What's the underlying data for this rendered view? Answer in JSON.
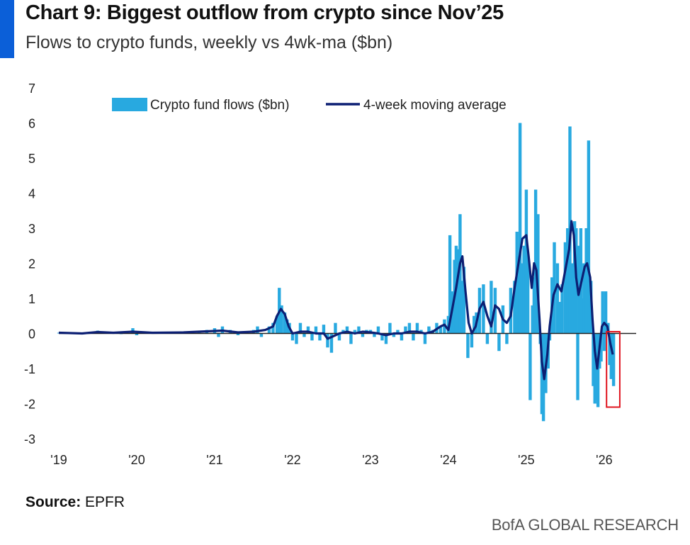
{
  "header": {
    "title": "Chart 9: Biggest outflow from crypto since Nov’25",
    "subtitle": "Flows to crypto funds, weekly vs 4wk-ma ($bn)"
  },
  "footer": {
    "source_label": "Source:",
    "source_value": " EPFR",
    "brand": "BofA GLOBAL RESEARCH"
  },
  "colors": {
    "flows": "#28a9e0",
    "ma": "#0c1f73",
    "highlight": "#e0141e",
    "accent": "#0b5fd8"
  },
  "chart_data": {
    "type": "bar",
    "ylim": [
      -3,
      7
    ],
    "yticks": [
      "7",
      "6",
      "5",
      "4",
      "3",
      "2",
      "1",
      "0",
      "-1",
      "-2",
      "-3"
    ],
    "xticks": [
      "'19",
      "'20",
      "'21",
      "'22",
      "'23",
      "'24",
      "'25",
      "'26"
    ],
    "legend": {
      "placement": "top",
      "flows_label": "Crypto fund flows ($bn)",
      "ma_label": "4-week moving average"
    },
    "highlight_range": {
      "x": [
        2026.03,
        2026.2
      ],
      "y": [
        -2.1,
        0.05
      ]
    },
    "series": [
      {
        "name": "Crypto fund flows ($bn)",
        "type": "bar",
        "points": [
          [
            2019.0,
            0.02
          ],
          [
            2019.3,
            -0.03
          ],
          [
            2019.5,
            0.08
          ],
          [
            2019.7,
            0.03
          ],
          [
            2019.8,
            -0.02
          ],
          [
            2019.95,
            0.15
          ],
          [
            2020.0,
            -0.05
          ],
          [
            2020.2,
            0.03
          ],
          [
            2020.4,
            0.05
          ],
          [
            2020.6,
            0.02
          ],
          [
            2020.8,
            0.06
          ],
          [
            2020.9,
            0.1
          ],
          [
            2021.0,
            0.15
          ],
          [
            2021.05,
            -0.1
          ],
          [
            2021.1,
            0.2
          ],
          [
            2021.2,
            0.1
          ],
          [
            2021.3,
            -0.05
          ],
          [
            2021.4,
            0.05
          ],
          [
            2021.5,
            0.1
          ],
          [
            2021.55,
            0.2
          ],
          [
            2021.6,
            -0.1
          ],
          [
            2021.7,
            0.2
          ],
          [
            2021.75,
            0.3
          ],
          [
            2021.8,
            0.5
          ],
          [
            2021.83,
            1.3
          ],
          [
            2021.86,
            0.8
          ],
          [
            2021.9,
            0.6
          ],
          [
            2021.93,
            0.4
          ],
          [
            2021.96,
            0.3
          ],
          [
            2022.0,
            -0.2
          ],
          [
            2022.05,
            -0.3
          ],
          [
            2022.1,
            0.3
          ],
          [
            2022.15,
            -0.1
          ],
          [
            2022.2,
            0.2
          ],
          [
            2022.25,
            -0.2
          ],
          [
            2022.3,
            0.2
          ],
          [
            2022.35,
            -0.2
          ],
          [
            2022.4,
            0.25
          ],
          [
            2022.45,
            -0.4
          ],
          [
            2022.5,
            -0.55
          ],
          [
            2022.55,
            0.3
          ],
          [
            2022.6,
            -0.2
          ],
          [
            2022.65,
            0.1
          ],
          [
            2022.7,
            0.2
          ],
          [
            2022.75,
            -0.3
          ],
          [
            2022.8,
            0.1
          ],
          [
            2022.85,
            0.2
          ],
          [
            2022.9,
            -0.1
          ],
          [
            2022.95,
            0.1
          ],
          [
            2023.0,
            0.1
          ],
          [
            2023.05,
            -0.1
          ],
          [
            2023.1,
            0.2
          ],
          [
            2023.15,
            -0.2
          ],
          [
            2023.2,
            -0.3
          ],
          [
            2023.25,
            0.3
          ],
          [
            2023.3,
            -0.1
          ],
          [
            2023.35,
            0.1
          ],
          [
            2023.4,
            -0.2
          ],
          [
            2023.45,
            0.2
          ],
          [
            2023.5,
            0.3
          ],
          [
            2023.55,
            -0.2
          ],
          [
            2023.6,
            0.3
          ],
          [
            2023.65,
            0.1
          ],
          [
            2023.7,
            -0.3
          ],
          [
            2023.75,
            0.2
          ],
          [
            2023.8,
            0.1
          ],
          [
            2023.85,
            0.3
          ],
          [
            2023.9,
            0.2
          ],
          [
            2023.95,
            0.4
          ],
          [
            2024.0,
            0.5
          ],
          [
            2024.02,
            2.8
          ],
          [
            2024.05,
            1.2
          ],
          [
            2024.08,
            2.1
          ],
          [
            2024.1,
            2.5
          ],
          [
            2024.12,
            2.4
          ],
          [
            2024.15,
            3.4
          ],
          [
            2024.18,
            1.5
          ],
          [
            2024.2,
            1.9
          ],
          [
            2024.25,
            -0.7
          ],
          [
            2024.3,
            -0.4
          ],
          [
            2024.33,
            0.5
          ],
          [
            2024.36,
            0.6
          ],
          [
            2024.4,
            1.3
          ],
          [
            2024.45,
            1.4
          ],
          [
            2024.5,
            -0.3
          ],
          [
            2024.55,
            1.5
          ],
          [
            2024.6,
            1.3
          ],
          [
            2024.65,
            -0.5
          ],
          [
            2024.7,
            0.8
          ],
          [
            2024.75,
            -0.3
          ],
          [
            2024.8,
            1.3
          ],
          [
            2024.85,
            1.5
          ],
          [
            2024.88,
            2.9
          ],
          [
            2024.9,
            2.2
          ],
          [
            2024.92,
            6.0
          ],
          [
            2024.95,
            2.0
          ],
          [
            2024.97,
            2.5
          ],
          [
            2025.0,
            4.1
          ],
          [
            2025.02,
            2.2
          ],
          [
            2025.05,
            -1.9
          ],
          [
            2025.08,
            0.8
          ],
          [
            2025.1,
            1.6
          ],
          [
            2025.12,
            4.1
          ],
          [
            2025.15,
            3.4
          ],
          [
            2025.18,
            -0.3
          ],
          [
            2025.2,
            -2.3
          ],
          [
            2025.22,
            -2.5
          ],
          [
            2025.25,
            -1.7
          ],
          [
            2025.28,
            -1.0
          ],
          [
            2025.3,
            -0.2
          ],
          [
            2025.33,
            1.6
          ],
          [
            2025.36,
            2.6
          ],
          [
            2025.4,
            2.0
          ],
          [
            2025.43,
            0.9
          ],
          [
            2025.46,
            1.4
          ],
          [
            2025.5,
            2.6
          ],
          [
            2025.53,
            3.0
          ],
          [
            2025.56,
            5.9
          ],
          [
            2025.59,
            2.0
          ],
          [
            2025.62,
            3.2
          ],
          [
            2025.64,
            3.0
          ],
          [
            2025.66,
            -1.9
          ],
          [
            2025.68,
            2.5
          ],
          [
            2025.7,
            3.0
          ],
          [
            2025.72,
            1.0
          ],
          [
            2025.74,
            2.0
          ],
          [
            2025.77,
            3.0
          ],
          [
            2025.8,
            5.5
          ],
          [
            2025.83,
            1.5
          ],
          [
            2025.86,
            -1.5
          ],
          [
            2025.88,
            -2.0
          ],
          [
            2025.9,
            -1.9
          ],
          [
            2025.92,
            -2.1
          ],
          [
            2025.94,
            -1.0
          ],
          [
            2025.96,
            -0.8
          ],
          [
            2025.98,
            1.2
          ],
          [
            2026.0,
            -0.5
          ],
          [
            2026.02,
            1.2
          ],
          [
            2026.05,
            0.3
          ],
          [
            2026.07,
            -0.9
          ],
          [
            2026.09,
            -1.3
          ],
          [
            2026.12,
            -1.5
          ]
        ]
      },
      {
        "name": "4-week moving average",
        "type": "line",
        "points": [
          [
            2019.0,
            0.02
          ],
          [
            2019.3,
            0.0
          ],
          [
            2019.5,
            0.04
          ],
          [
            2019.7,
            0.02
          ],
          [
            2019.95,
            0.05
          ],
          [
            2020.2,
            0.02
          ],
          [
            2020.6,
            0.03
          ],
          [
            2020.9,
            0.06
          ],
          [
            2021.1,
            0.08
          ],
          [
            2021.3,
            0.03
          ],
          [
            2021.5,
            0.05
          ],
          [
            2021.65,
            0.1
          ],
          [
            2021.75,
            0.2
          ],
          [
            2021.8,
            0.5
          ],
          [
            2021.85,
            0.7
          ],
          [
            2021.9,
            0.55
          ],
          [
            2021.95,
            0.2
          ],
          [
            2022.0,
            0.0
          ],
          [
            2022.1,
            0.05
          ],
          [
            2022.2,
            0.05
          ],
          [
            2022.3,
            0.0
          ],
          [
            2022.4,
            0.0
          ],
          [
            2022.45,
            -0.15
          ],
          [
            2022.5,
            -0.1
          ],
          [
            2022.6,
            0.0
          ],
          [
            2022.7,
            0.05
          ],
          [
            2022.8,
            0.0
          ],
          [
            2022.9,
            0.05
          ],
          [
            2023.0,
            0.03
          ],
          [
            2023.1,
            0.0
          ],
          [
            2023.2,
            -0.05
          ],
          [
            2023.3,
            0.0
          ],
          [
            2023.4,
            0.0
          ],
          [
            2023.5,
            0.05
          ],
          [
            2023.6,
            0.05
          ],
          [
            2023.7,
            0.0
          ],
          [
            2023.8,
            0.05
          ],
          [
            2023.9,
            0.2
          ],
          [
            2023.95,
            0.25
          ],
          [
            2024.0,
            0.1
          ],
          [
            2024.05,
            0.7
          ],
          [
            2024.1,
            1.3
          ],
          [
            2024.15,
            2.0
          ],
          [
            2024.18,
            2.2
          ],
          [
            2024.22,
            1.2
          ],
          [
            2024.26,
            0.3
          ],
          [
            2024.3,
            0.0
          ],
          [
            2024.35,
            0.2
          ],
          [
            2024.4,
            0.7
          ],
          [
            2024.45,
            0.9
          ],
          [
            2024.5,
            0.5
          ],
          [
            2024.55,
            0.2
          ],
          [
            2024.6,
            0.8
          ],
          [
            2024.65,
            0.7
          ],
          [
            2024.7,
            0.4
          ],
          [
            2024.75,
            0.3
          ],
          [
            2024.8,
            0.5
          ],
          [
            2024.85,
            1.3
          ],
          [
            2024.9,
            2.0
          ],
          [
            2024.95,
            2.7
          ],
          [
            2025.0,
            2.8
          ],
          [
            2025.03,
            2.2
          ],
          [
            2025.07,
            1.3
          ],
          [
            2025.1,
            2.0
          ],
          [
            2025.13,
            1.8
          ],
          [
            2025.17,
            0.4
          ],
          [
            2025.2,
            -0.8
          ],
          [
            2025.23,
            -1.3
          ],
          [
            2025.27,
            -0.6
          ],
          [
            2025.3,
            0.2
          ],
          [
            2025.35,
            1.1
          ],
          [
            2025.4,
            1.4
          ],
          [
            2025.45,
            1.2
          ],
          [
            2025.5,
            1.8
          ],
          [
            2025.55,
            2.4
          ],
          [
            2025.58,
            3.2
          ],
          [
            2025.61,
            2.8
          ],
          [
            2025.64,
            1.6
          ],
          [
            2025.67,
            1.1
          ],
          [
            2025.7,
            1.4
          ],
          [
            2025.75,
            1.9
          ],
          [
            2025.78,
            2.0
          ],
          [
            2025.82,
            1.6
          ],
          [
            2025.85,
            0.4
          ],
          [
            2025.88,
            -0.5
          ],
          [
            2025.91,
            -1.0
          ],
          [
            2025.94,
            -0.4
          ],
          [
            2025.97,
            0.2
          ],
          [
            2026.0,
            0.3
          ],
          [
            2026.04,
            0.2
          ],
          [
            2026.08,
            -0.3
          ],
          [
            2026.11,
            -0.6
          ]
        ]
      }
    ]
  }
}
